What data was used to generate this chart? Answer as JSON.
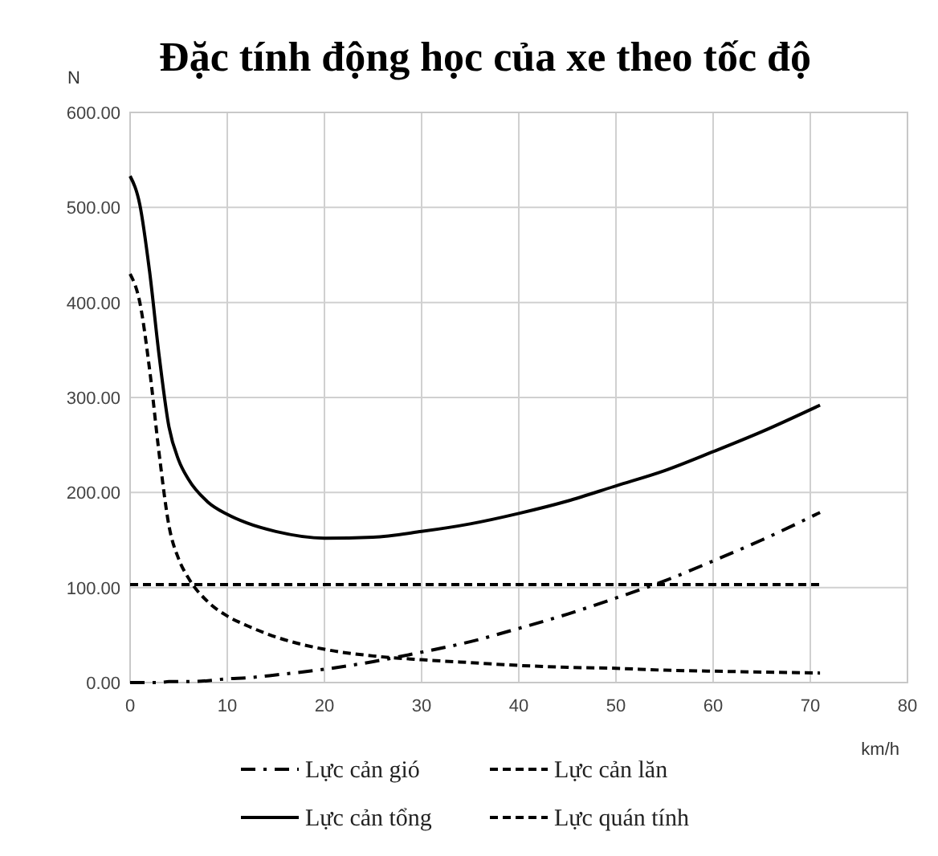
{
  "chart_data": {
    "type": "line",
    "title": "Đặc tính động học của xe theo tốc độ",
    "xlabel": "km/h",
    "ylabel": "N",
    "x": [
      0,
      1,
      2,
      3,
      4,
      5,
      6,
      8,
      10,
      12,
      15,
      20,
      25,
      30,
      35,
      40,
      45,
      50,
      55,
      60,
      65,
      71
    ],
    "series": [
      {
        "name": "Lực cản gió",
        "color": "#000000",
        "line_style": "dotted",
        "values": [
          0,
          0,
          0,
          0,
          1,
          1,
          1,
          2,
          4,
          5,
          8,
          14,
          22,
          32,
          43,
          57,
          72,
          89,
          107,
          128,
          150,
          179
        ]
      },
      {
        "name": "Lực cản lăn",
        "color": "#000000",
        "line_style": "dashed",
        "values": [
          103,
          103,
          103,
          103,
          103,
          103,
          103,
          103,
          103,
          103,
          103,
          103,
          103,
          103,
          103,
          103,
          103,
          103,
          103,
          103,
          103,
          103
        ]
      },
      {
        "name": "Lực cản tổng",
        "color": "#000000",
        "line_style": "solid",
        "values": [
          533,
          503,
          433,
          343,
          269,
          234,
          214,
          190,
          177,
          168,
          159,
          152,
          153,
          159,
          167,
          178,
          191,
          207,
          223,
          243,
          264,
          292
        ]
      },
      {
        "name": "Lực quán tính",
        "color": "#000000",
        "line_style": "dashed",
        "values": [
          430,
          400,
          330,
          240,
          165,
          130,
          110,
          85,
          70,
          60,
          48,
          35,
          28,
          24,
          21,
          18,
          16,
          15,
          13,
          12,
          11,
          10
        ]
      }
    ],
    "xlim": [
      0,
      80
    ],
    "xticks": [
      0,
      10,
      20,
      30,
      40,
      50,
      60,
      70,
      80
    ],
    "ylim": [
      0,
      600
    ],
    "yticks": [
      {
        "value": 0,
        "label": "0.00"
      },
      {
        "value": 100,
        "label": "100.00"
      },
      {
        "value": 200,
        "label": "200.00"
      },
      {
        "value": 300,
        "label": "300.00"
      },
      {
        "value": 400,
        "label": "400.00"
      },
      {
        "value": 500,
        "label": "500.00"
      },
      {
        "value": 600,
        "label": "600.00"
      }
    ],
    "grid": true,
    "legend": "bottom"
  }
}
